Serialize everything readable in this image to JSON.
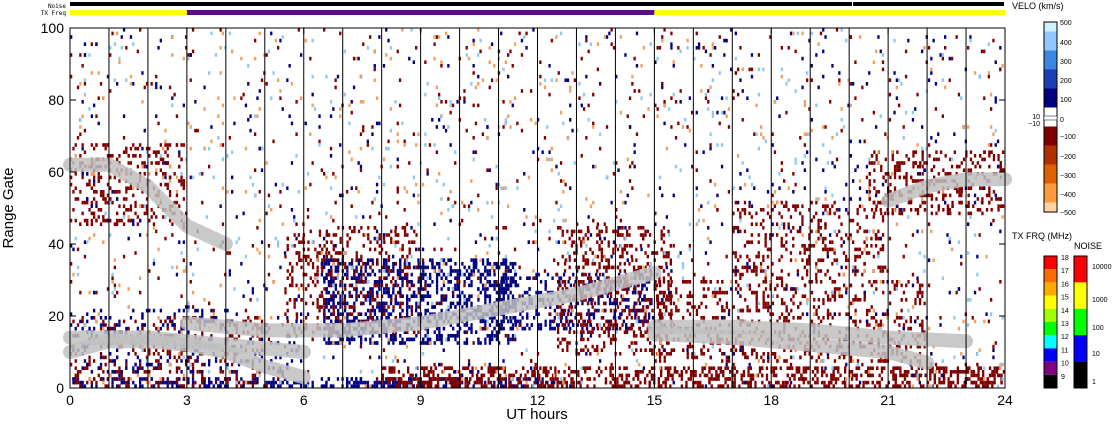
{
  "chart_data": {
    "type": "heatmap",
    "xlabel": "UT hours",
    "ylabel": "Range Gate",
    "x_ticks": [
      "0",
      "3",
      "6",
      "9",
      "12",
      "15",
      "18",
      "21",
      "24"
    ],
    "y_ticks": [
      "0",
      "20",
      "40",
      "60",
      "80",
      "100"
    ],
    "xlim": [
      0,
      24
    ],
    "ylim": [
      0,
      100
    ],
    "status_bars": {
      "noise_label": "Noise",
      "txfreq_label": "TX Freq",
      "noise_segments": [
        {
          "start": 0,
          "end": 20.1,
          "color": "#000000"
        },
        {
          "start": 20.1,
          "end": 24,
          "color": "#000000"
        }
      ],
      "txfreq_segments": [
        {
          "start": 0,
          "end": 3,
          "color": "#ffff00"
        },
        {
          "start": 3,
          "end": 15,
          "color": "#5a0a8c"
        },
        {
          "start": 15,
          "end": 24,
          "color": "#ffff00"
        }
      ]
    },
    "velocity_colorbar": {
      "title": "VELO (km/s)",
      "tick_labels": [
        "500",
        "400",
        "300",
        "200",
        "100",
        "0",
        "10",
        "−10",
        "−100",
        "−200",
        "−300",
        "−400",
        "−500"
      ],
      "stops": [
        "#d0f0ff",
        "#8ec8ff",
        "#3a86e0",
        "#1a3fb5",
        "#000080",
        "#ffffff",
        "#800000",
        "#b03000",
        "#e06000",
        "#ff9a40",
        "#ffd2a0"
      ]
    },
    "txfreq_colorbar": {
      "title": "TX FRQ (MHz)",
      "tick_labels": [
        "18",
        "17",
        "16",
        "15",
        "14",
        "13",
        "12",
        "11",
        "10",
        "9"
      ],
      "colors": [
        "#ff0000",
        "#ff6a00",
        "#ffaa00",
        "#ffff00",
        "#a0ff00",
        "#00ff00",
        "#00ffff",
        "#0000ff",
        "#800080",
        "#000000"
      ]
    },
    "noise_colorbar": {
      "title": "NOISE",
      "tick_labels": [
        "10000",
        "1000",
        "100",
        "10",
        "1"
      ],
      "colors": [
        "#ff0000",
        "#ffff00",
        "#00ff00",
        "#0000ff",
        "#000000"
      ]
    },
    "scan_boundaries_ut": [
      1,
      2,
      3,
      4,
      5,
      6,
      7,
      8,
      9,
      10,
      11,
      12,
      13,
      14,
      15,
      16,
      17,
      18,
      19,
      20,
      21,
      22,
      23
    ],
    "echo_regions": [
      {
        "x0": 0,
        "x1": 12.5,
        "y0": 0,
        "y1": 3,
        "color": "#000080",
        "density": 0.55
      },
      {
        "x0": 8,
        "x1": 24,
        "y0": 0,
        "y1": 6,
        "color": "#800000",
        "density": 0.55
      },
      {
        "x0": 0,
        "x1": 5,
        "y0": 0,
        "y1": 20,
        "color": "#800000",
        "density": 0.18
      },
      {
        "x0": 0,
        "x1": 6,
        "y0": 3,
        "y1": 22,
        "color": "#000080",
        "density": 0.12
      },
      {
        "x0": 6.5,
        "x1": 11.5,
        "y0": 12,
        "y1": 36,
        "color": "#000080",
        "density": 0.5
      },
      {
        "x0": 11,
        "x1": 15,
        "y0": 15,
        "y1": 32,
        "color": "#000080",
        "density": 0.3
      },
      {
        "x0": 5.5,
        "x1": 9,
        "y0": 15,
        "y1": 45,
        "color": "#800000",
        "density": 0.2
      },
      {
        "x0": 12.5,
        "x1": 15.5,
        "y0": 8,
        "y1": 45,
        "color": "#800000",
        "density": 0.3
      },
      {
        "x0": 15,
        "x1": 22,
        "y0": 7,
        "y1": 30,
        "color": "#800000",
        "density": 0.22
      },
      {
        "x0": 17,
        "x1": 21,
        "y0": 30,
        "y1": 52,
        "color": "#800000",
        "density": 0.2
      },
      {
        "x0": 20.5,
        "x1": 24,
        "y0": 48,
        "y1": 66,
        "color": "#800000",
        "density": 0.3
      },
      {
        "x0": 0,
        "x1": 3,
        "y0": 45,
        "y1": 68,
        "color": "#800000",
        "density": 0.25
      },
      {
        "x0": 0,
        "x1": 24,
        "y0": 0,
        "y1": 100,
        "color": "#800000",
        "density": 0.018
      },
      {
        "x0": 0,
        "x1": 24,
        "y0": 0,
        "y1": 100,
        "color": "#000080",
        "density": 0.015
      },
      {
        "x0": 0,
        "x1": 24,
        "y0": 0,
        "y1": 100,
        "color": "#f0a060",
        "density": 0.012
      },
      {
        "x0": 0,
        "x1": 24,
        "y0": 0,
        "y1": 100,
        "color": "#90c8f0",
        "density": 0.01
      }
    ],
    "ground_scatter_bands": [
      [
        [
          0,
          10
        ],
        [
          1,
          13
        ],
        [
          2,
          13
        ],
        [
          3,
          12
        ],
        [
          4,
          10
        ],
        [
          5,
          6
        ],
        [
          6,
          3
        ]
      ],
      [
        [
          3,
          18
        ],
        [
          5,
          16
        ],
        [
          7,
          16
        ],
        [
          9,
          18
        ],
        [
          11,
          22
        ],
        [
          13,
          26
        ],
        [
          15,
          32
        ]
      ],
      [
        [
          0,
          62
        ],
        [
          1,
          62
        ],
        [
          2,
          56
        ],
        [
          3,
          45
        ],
        [
          4,
          40
        ]
      ],
      [
        [
          0,
          14
        ],
        [
          2,
          14
        ],
        [
          4,
          12
        ],
        [
          6,
          10
        ]
      ],
      [
        [
          15,
          15
        ],
        [
          17,
          14
        ],
        [
          19,
          12
        ],
        [
          21,
          10
        ],
        [
          22,
          7
        ]
      ],
      [
        [
          15,
          17
        ],
        [
          17,
          17
        ],
        [
          19,
          16
        ],
        [
          21,
          14
        ],
        [
          23,
          13
        ]
      ],
      [
        [
          21,
          52
        ],
        [
          22,
          56
        ],
        [
          23,
          58
        ],
        [
          24,
          58
        ]
      ]
    ]
  }
}
